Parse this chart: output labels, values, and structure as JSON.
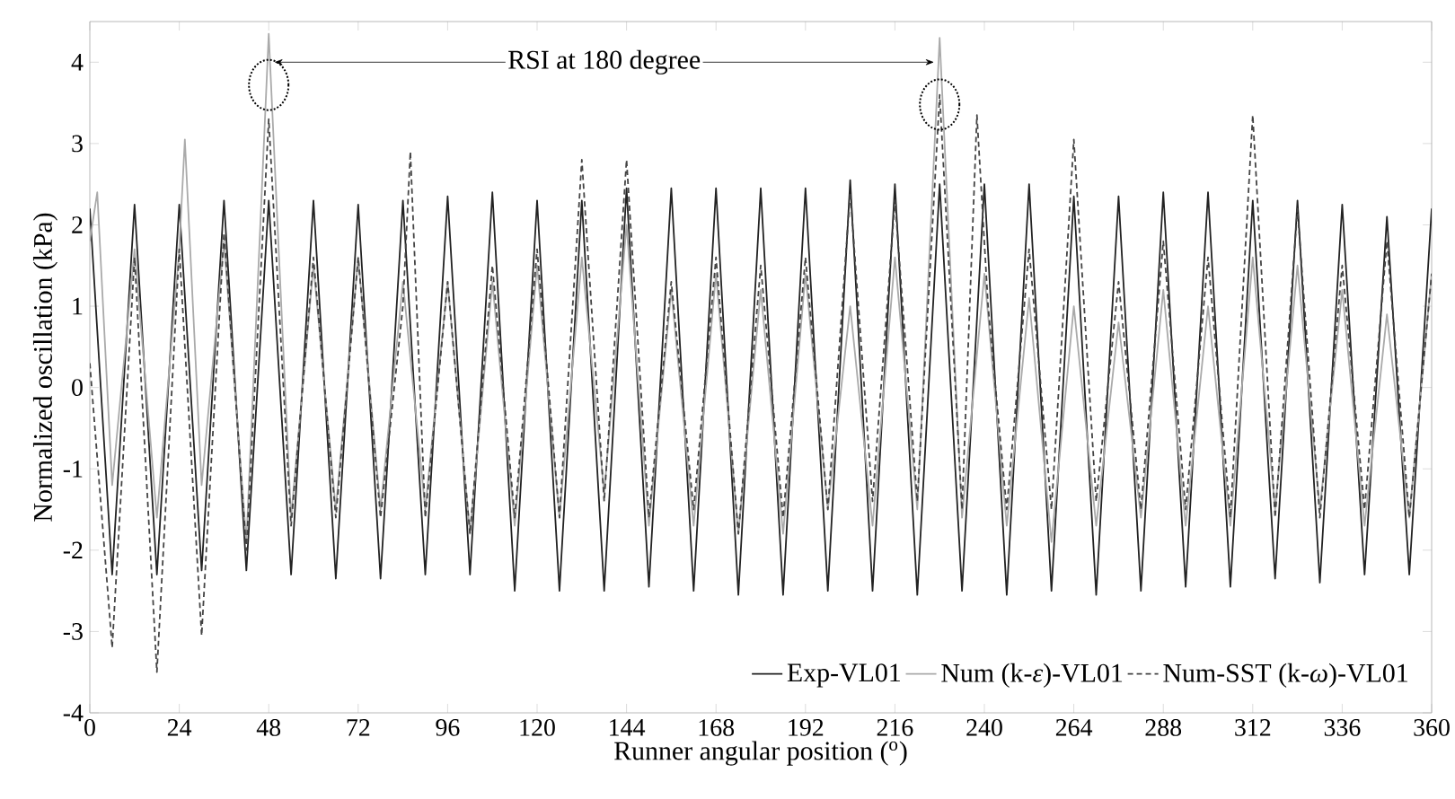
{
  "chart_data": {
    "type": "line",
    "xlabel": "Runner angular position ($^{o}$)",
    "ylabel": "Normalized oscillation (kPa)",
    "annotations": [
      {
        "text": "RSI at 180 degree",
        "x": 48,
        "y": 4.0
      }
    ],
    "xlim": [
      0,
      360
    ],
    "xticks": [
      0,
      24,
      48,
      72,
      96,
      120,
      144,
      168,
      192,
      216,
      240,
      264,
      288,
      312,
      336,
      360
    ],
    "ylim": [
      -4,
      4.5
    ],
    "yticks": [
      -4,
      -3,
      -2,
      -1,
      0,
      1,
      2,
      3,
      4
    ],
    "grid": false,
    "legend": "bottom right",
    "series": [
      {
        "name": "Exp-VL01",
        "color": "#222222",
        "line_style": "solid",
        "x": [
          0,
          6,
          12,
          18,
          24,
          30,
          36,
          42,
          48,
          54,
          60,
          66,
          72,
          78,
          84,
          90,
          96,
          102,
          108,
          114,
          120,
          126,
          132,
          138,
          144,
          150,
          156,
          162,
          168,
          174,
          180,
          186,
          192,
          198,
          204,
          210,
          216,
          222,
          228,
          234,
          240,
          246,
          252,
          258,
          264,
          270,
          276,
          282,
          288,
          294,
          300,
          306,
          312,
          318,
          324,
          330,
          336,
          342,
          348,
          354,
          360
        ],
        "values": [
          2.2,
          -2.3,
          2.25,
          -2.3,
          2.25,
          -2.25,
          2.3,
          -2.25,
          2.3,
          -2.3,
          2.3,
          -2.35,
          2.25,
          -2.35,
          2.3,
          -2.3,
          2.35,
          -2.3,
          2.4,
          -2.5,
          2.3,
          -2.5,
          2.3,
          -2.5,
          2.45,
          -2.45,
          2.45,
          -2.5,
          2.45,
          -2.55,
          2.45,
          -2.55,
          2.45,
          -2.5,
          2.55,
          -2.5,
          2.5,
          -2.55,
          2.5,
          -2.5,
          2.5,
          -2.55,
          2.5,
          -2.5,
          2.35,
          -2.55,
          2.35,
          -2.5,
          2.4,
          -2.45,
          2.4,
          -2.45,
          2.3,
          -2.35,
          2.3,
          -2.4,
          2.25,
          -2.3,
          2.1,
          -2.3,
          2.2
        ]
      },
      {
        "name": "Num (k-*ε*)-VL01",
        "color": "#aaaaaa",
        "line_style": "solid",
        "x": [
          0,
          2,
          6,
          12,
          18,
          24,
          25.5,
          30,
          36,
          42,
          48,
          54,
          60,
          66,
          72,
          78,
          84,
          90,
          96,
          102,
          108,
          114,
          120,
          126,
          132,
          138,
          144,
          150,
          156,
          162,
          168,
          174,
          180,
          186,
          192,
          198,
          204,
          210,
          216,
          222,
          228,
          234,
          240,
          246,
          252,
          258,
          264,
          270,
          276,
          282,
          288,
          294,
          300,
          306,
          312,
          318,
          324,
          330,
          336,
          342,
          348,
          354,
          360
        ],
        "values": [
          1.8,
          2.4,
          -1.2,
          1.7,
          -1.6,
          1.7,
          3.05,
          -1.2,
          1.8,
          -1.9,
          4.35,
          -1.6,
          1.5,
          -1.5,
          1.6,
          -1.5,
          1.3,
          -1.5,
          1.3,
          -1.8,
          1.3,
          -1.7,
          1.5,
          -1.6,
          1.6,
          -1.3,
          2.0,
          -1.7,
          1.2,
          -1.7,
          1.4,
          -1.8,
          1.2,
          -1.8,
          1.4,
          -1.5,
          1.0,
          -1.7,
          1.6,
          -1.5,
          4.3,
          -1.6,
          1.4,
          -1.7,
          1.1,
          -1.9,
          1.0,
          -1.7,
          0.8,
          -1.6,
          1.2,
          -1.7,
          1.0,
          -1.7,
          1.6,
          -1.5,
          1.5,
          -1.5,
          1.2,
          -1.7,
          0.9,
          -1.6,
          1.4
        ]
      },
      {
        "name": "Num-SST (k-*ω*)-VL01",
        "color": "#444444",
        "line_style": "dashed",
        "x": [
          0,
          6,
          12,
          18,
          24,
          30,
          36,
          42,
          48,
          54,
          60,
          66,
          72,
          78,
          84,
          86,
          90,
          96,
          102,
          108,
          114,
          120,
          126,
          132,
          138,
          144,
          150,
          156,
          162,
          168,
          174,
          180,
          186,
          192,
          198,
          204,
          210,
          216,
          222,
          228,
          234,
          238,
          241,
          246,
          252,
          258,
          264,
          270,
          276,
          282,
          288,
          294,
          300,
          306,
          312,
          318,
          324,
          330,
          336,
          342,
          348,
          354,
          360
        ],
        "values": [
          0.3,
          -3.2,
          1.6,
          -3.5,
          1.7,
          -3.05,
          1.9,
          -2.0,
          3.3,
          -1.7,
          1.6,
          -1.6,
          1.6,
          -1.6,
          1.0,
          2.9,
          -1.6,
          1.3,
          -1.8,
          1.5,
          -1.6,
          1.7,
          -1.6,
          2.8,
          -1.4,
          2.8,
          -1.6,
          1.3,
          -1.5,
          1.6,
          -1.8,
          1.5,
          -1.6,
          1.6,
          -1.5,
          2.4,
          -1.4,
          2.3,
          -1.4,
          3.6,
          -1.5,
          3.35,
          1.0,
          -1.5,
          1.7,
          -1.5,
          3.05,
          -1.4,
          1.3,
          -1.5,
          1.8,
          -1.5,
          1.6,
          -1.6,
          3.35,
          -1.6,
          2.2,
          -1.6,
          1.5,
          -1.5,
          1.8,
          -1.6,
          1.4
        ]
      }
    ]
  }
}
